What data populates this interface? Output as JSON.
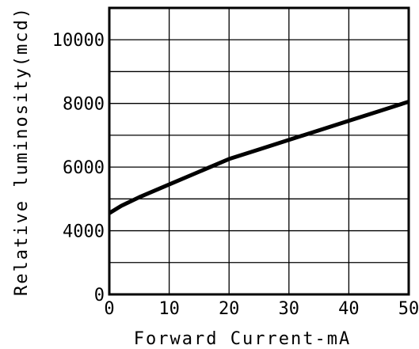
{
  "chart_data": {
    "type": "line",
    "xlabel": "Forward Current-mA",
    "ylabel": "Relative luminosity(mcd)",
    "xlim": [
      0,
      50
    ],
    "x_ticks": [
      0,
      10,
      20,
      30,
      40,
      50
    ],
    "y_ticks": [
      {
        "position": 0,
        "label": "0"
      },
      {
        "position": 4000,
        "label": "4000"
      },
      {
        "position": 6000,
        "label": "6000"
      },
      {
        "position": 8000,
        "label": "8000"
      },
      {
        "position": 10000,
        "label": "10000"
      }
    ],
    "grid": true,
    "series": [
      {
        "x": [
          0,
          2,
          5,
          10,
          15,
          20,
          25,
          30,
          35,
          40,
          45,
          50
        ],
        "y": [
          4550,
          4780,
          5050,
          5450,
          5850,
          6250,
          6550,
          6850,
          7150,
          7450,
          7750,
          8050
        ]
      }
    ]
  }
}
